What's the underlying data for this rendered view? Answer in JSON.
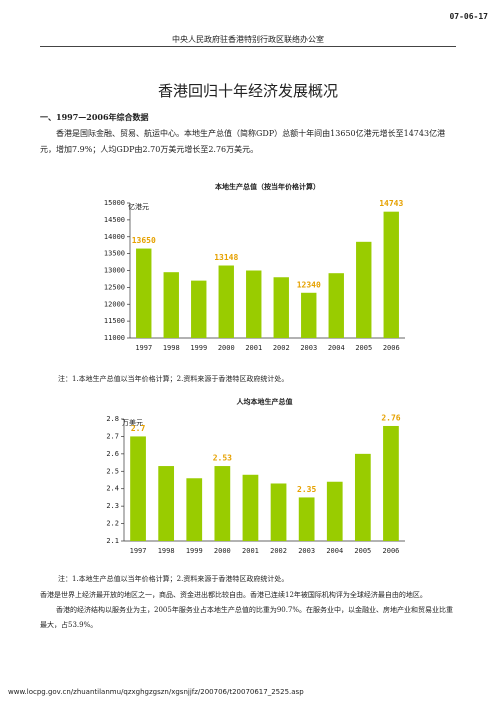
{
  "header": {
    "date": "07-06-17",
    "organization": "中央人民政府驻香港特别行政区联络办公室"
  },
  "title": "香港回归十年经济发展概况",
  "section": "一、1997—2006年综合数据",
  "paragraphs": [
    "香港是国际金融、贸易、航运中心。本地生产总值（简称GDP）总额十年间由13650亿港元增长至14743亿港元，增加7.9%；人均GDP由2.70万美元增长至2.76万美元。",
    "香港是世界上经济最开放的地区之一，商品、资金进出都比较自由。香港已连续12年被国际机构评为全球经济最自由的地区。",
    "香港的经济结构以服务业为主，2005年服务业占本地生产总值的比重为90.7%。在服务业中，以金融业、房地产业和贸易业比重最大，占53.9%。"
  ],
  "notes": [
    "注：1.本地生产总值以当年价格计算；2.资料来源于香港特区政府统计处。",
    "注：1.本地生产总值以当年价格计算；2.资料来源于香港特区政府统计处。"
  ],
  "footer": "www.locpg.gov.cn/zhuantilanmu/qzxghgzgszn/xgsnjjfz/200706/t20070617_2525.asp",
  "chart_data": [
    {
      "type": "bar",
      "title": "本地生产总值（按当年价格计算）",
      "y_label": "亿港元",
      "categories": [
        "1997",
        "1998",
        "1999",
        "2000",
        "2001",
        "2002",
        "2003",
        "2004",
        "2005",
        "2006"
      ],
      "values": [
        13650,
        12950,
        12700,
        13148,
        13000,
        12800,
        12340,
        12920,
        13850,
        14743
      ],
      "value_labels": [
        "13650",
        null,
        null,
        "13148",
        null,
        null,
        "12340",
        null,
        null,
        "14743"
      ],
      "color": "#99cc00",
      "label_color": "#e6a100",
      "ylim": [
        11000,
        15000
      ],
      "yticks": [
        11000,
        11500,
        12000,
        12500,
        13000,
        13500,
        14000,
        14500,
        15000
      ],
      "grid": false
    },
    {
      "type": "bar",
      "title": "人均本地生产总值",
      "y_label": "万美元",
      "categories": [
        "1997",
        "1998",
        "1999",
        "2000",
        "2001",
        "2002",
        "2003",
        "2004",
        "2005",
        "2006"
      ],
      "values": [
        2.7,
        2.53,
        2.46,
        2.53,
        2.48,
        2.43,
        2.35,
        2.44,
        2.6,
        2.76
      ],
      "value_labels": [
        "2.7",
        null,
        null,
        "2.53",
        null,
        null,
        "2.35",
        null,
        null,
        "2.76"
      ],
      "color": "#99cc00",
      "label_color": "#e6a100",
      "ylim": [
        2.1,
        2.8
      ],
      "yticks": [
        2.1,
        2.2,
        2.3,
        2.4,
        2.5,
        2.6,
        2.7,
        2.8
      ],
      "grid": false
    }
  ]
}
